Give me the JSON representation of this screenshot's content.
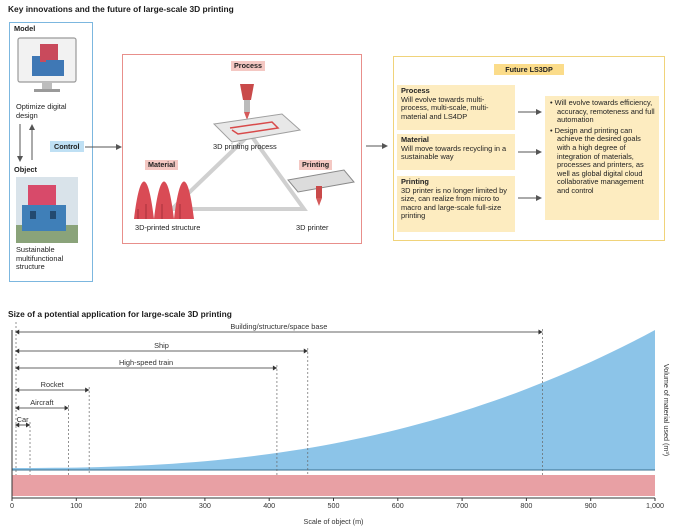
{
  "title_top": "Key innovations and the future of large-scale 3D printing",
  "left_panel": {
    "model_title": "Model",
    "model_caption": "Optimize digital design",
    "control_label": "Control",
    "object_title": "Object",
    "object_caption": "Sustainable multifunctional structure"
  },
  "triangle": {
    "process_label": "Process",
    "process_caption": "3D printing process",
    "material_label": "Material",
    "material_caption": "3D-printed structure",
    "printing_label": "Printing",
    "printing_caption": "3D printer"
  },
  "future": {
    "title": "Future LS3DP",
    "rows": [
      {
        "title": "Process",
        "text": "Will evolve towards multi-process, multi-scale, multi-material and LS4DP"
      },
      {
        "title": "Material",
        "text": "Will move towards recycling in a sustainable way"
      },
      {
        "title": "Printing",
        "text": "3D printer is no longer limited by size, can realize from micro to macro and large-scale full-size printing"
      }
    ],
    "bullets": [
      "Will evolve towards efficiency, accuracy, remoteness and full automation",
      "Design and printing can achieve the desired goals with a high degree of integration of materials, processes and printers, as well as global digital cloud collaborative management and control"
    ]
  },
  "chart_title": "Size of a potential application for large-scale 3D printing",
  "chart_data": {
    "type": "area",
    "xlabel": "Scale of object (m)",
    "ylabel": "Volume of material used (m³)",
    "xlim": [
      0,
      1000
    ],
    "x_ticks": [
      0,
      100,
      200,
      300,
      400,
      500,
      600,
      700,
      800,
      900,
      1000
    ],
    "curve": {
      "shape": "increasing-convex"
    },
    "ranges": [
      {
        "name": "Building/structure/space base",
        "x_start": 5,
        "x_end": 825
      },
      {
        "name": "Ship",
        "x_start": 5,
        "x_end": 460
      },
      {
        "name": "High-speed train",
        "x_start": 5,
        "x_end": 412
      },
      {
        "name": "Rocket",
        "x_start": 5,
        "x_end": 120
      },
      {
        "name": "Aircraft",
        "x_start": 5,
        "x_end": 88
      },
      {
        "name": "Car",
        "x_start": 5,
        "x_end": 28
      }
    ],
    "colors": {
      "area": "#8cc4e8",
      "band": "#e8a0a4",
      "line": "#444444"
    }
  }
}
